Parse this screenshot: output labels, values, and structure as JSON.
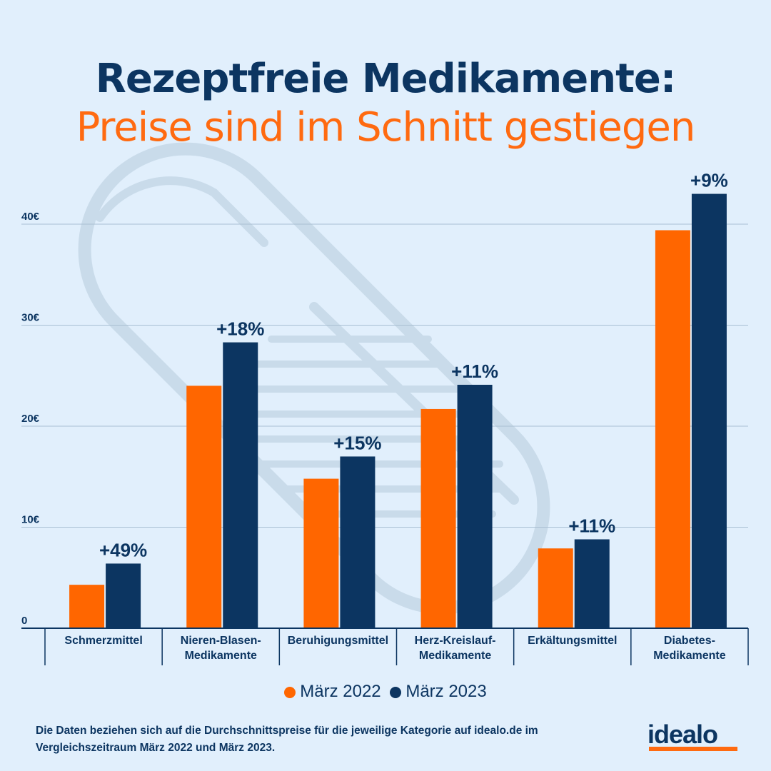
{
  "header": {
    "title": "Rezeptfreie Medikamente:",
    "subtitle": "Preise sind im Schnitt gestiegen"
  },
  "colors": {
    "background": "#e1effc",
    "series_2022": "#ff6600",
    "series_2023": "#0c3561",
    "text": "#0c3561",
    "subtitle": "#ff6a10"
  },
  "chart_data": {
    "type": "bar",
    "title": "Rezeptfreie Medikamente: Preise sind im Schnitt gestiegen",
    "xlabel": "",
    "ylabel": "",
    "ylim": [
      0,
      45
    ],
    "y_ticks": [
      {
        "value": 0,
        "label": "0"
      },
      {
        "value": 10,
        "label": "10€"
      },
      {
        "value": 20,
        "label": "20€"
      },
      {
        "value": 30,
        "label": "30€"
      },
      {
        "value": 40,
        "label": "40€"
      }
    ],
    "grid": true,
    "legend_position": "bottom-center",
    "categories": [
      [
        "Schmerzmittel"
      ],
      [
        "Nieren-Blasen-",
        "Medikamente"
      ],
      [
        "Beruhigungsmittel"
      ],
      [
        "Herz-Kreislauf-",
        "Medikamente"
      ],
      [
        "Erkältungsmittel"
      ],
      [
        "Diabetes-",
        "Medikamente"
      ]
    ],
    "series": [
      {
        "name": "März 2022",
        "color": "#ff6600",
        "values": [
          4.3,
          24.0,
          14.8,
          21.7,
          7.9,
          39.4
        ]
      },
      {
        "name": "März 2023",
        "color": "#0c3561",
        "values": [
          6.4,
          28.3,
          17.0,
          24.1,
          8.8,
          43.0
        ]
      }
    ],
    "annotations": [
      "+49%",
      "+18%",
      "+15%",
      "+11%",
      "+11%",
      "+9%"
    ]
  },
  "legend": {
    "items": [
      {
        "label": "März 2022",
        "color": "#ff6600"
      },
      {
        "label": "März 2023",
        "color": "#0c3561"
      }
    ]
  },
  "footer": {
    "note": "Die Daten beziehen sich auf die Durchschnittspreise für die jeweilige Kategorie auf idealo.de im Vergleichszeitraum März 2022 und März 2023.",
    "logo": "idealo"
  }
}
